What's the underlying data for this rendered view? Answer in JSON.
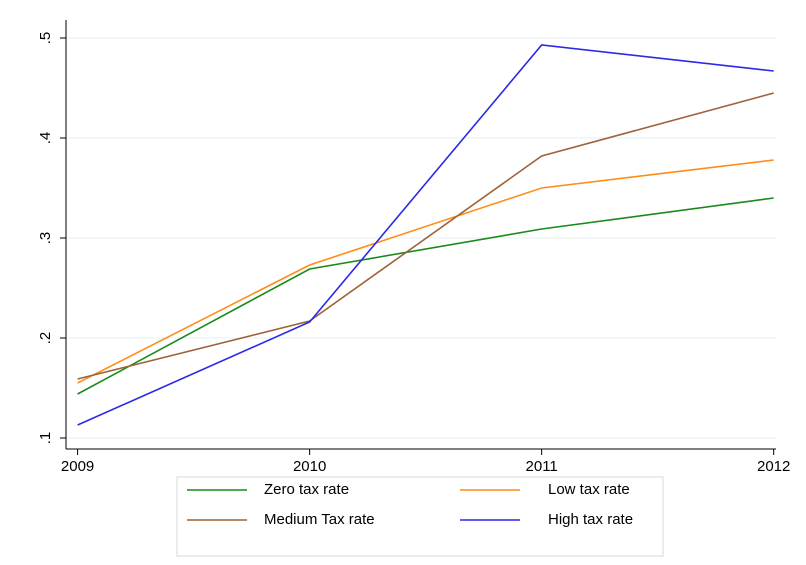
{
  "chart_data": {
    "type": "line",
    "x": [
      2009,
      2010,
      2011,
      2012
    ],
    "series": [
      {
        "name": "Zero tax rate",
        "color": "#1a8a1a",
        "values": [
          0.144,
          0.269,
          0.309,
          0.34
        ]
      },
      {
        "name": "Low tax rate",
        "color": "#ff8c1a",
        "values": [
          0.155,
          0.273,
          0.35,
          0.378
        ]
      },
      {
        "name": "Medium Tax rate",
        "color": "#a0623a",
        "values": [
          0.159,
          0.217,
          0.382,
          0.445
        ]
      },
      {
        "name": "High tax rate",
        "color": "#2a2ae6",
        "values": [
          0.113,
          0.216,
          0.493,
          0.467
        ]
      }
    ],
    "xlim": [
      2008.95,
      2012.01
    ],
    "xticks": [
      2009,
      2010,
      2011,
      2012
    ],
    "ylim": [
      0.089,
      0.518
    ],
    "yticks": [
      {
        "value": 0.1,
        "label": ".1"
      },
      {
        "value": 0.2,
        "label": ".2"
      },
      {
        "value": 0.3,
        "label": ".3"
      },
      {
        "value": 0.4,
        "label": ".4"
      },
      {
        "value": 0.5,
        "label": ".5"
      }
    ],
    "grid": true,
    "legend": "bottom"
  }
}
